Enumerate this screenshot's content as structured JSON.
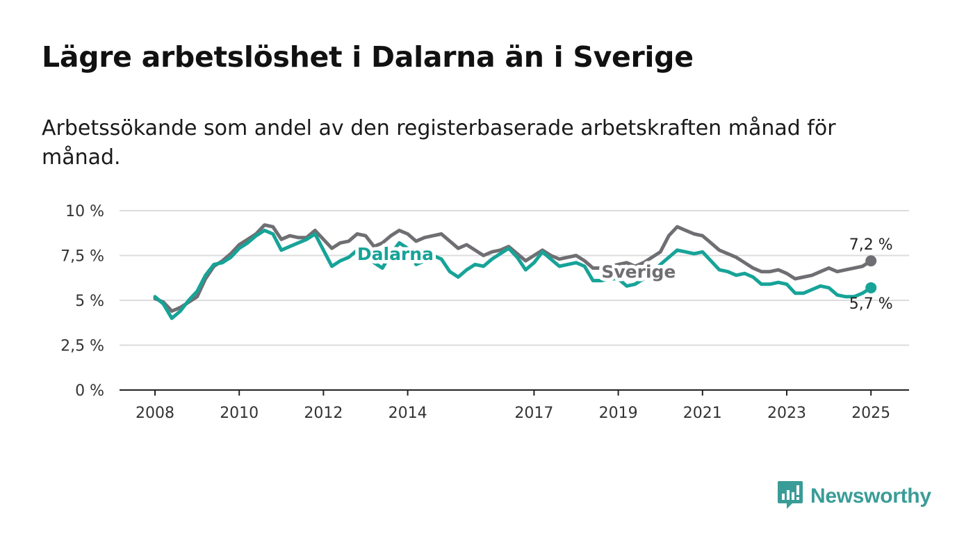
{
  "title": "Lägre arbetslöshet i Dalarna än i Sverige",
  "subtitle": "Arbetssökande som andel av den registerbaserade arbetskraften månad för månad.",
  "brand": {
    "name": "Newsworthy",
    "icon": "newsworthy-logo-icon",
    "color": "#3a9c97"
  },
  "chart_data": {
    "type": "line",
    "y_unit": "%",
    "ylim": [
      0,
      10
    ],
    "yticks": [
      0,
      2.5,
      5,
      7.5,
      10
    ],
    "ytick_labels": [
      "0 %",
      "2,5 %",
      "5 %",
      "7,5 %",
      "10 %"
    ],
    "xlim": [
      2007.9,
      2025.9
    ],
    "xticks": [
      2008,
      2010,
      2012,
      2014,
      2017,
      2019,
      2021,
      2023,
      2025
    ],
    "xtick_labels": [
      "2008",
      "2010",
      "2012",
      "2014",
      "2017",
      "2019",
      "2021",
      "2023",
      "2025"
    ],
    "grid": "horizontal",
    "legend": "inline labels",
    "series": [
      {
        "name": "Sverige",
        "color": "#6f6f73",
        "end_label": "7,2 %",
        "points": [
          [
            2008.0,
            5.1
          ],
          [
            2008.2,
            4.9
          ],
          [
            2008.4,
            4.4
          ],
          [
            2008.6,
            4.6
          ],
          [
            2008.8,
            4.9
          ],
          [
            2009.0,
            5.2
          ],
          [
            2009.2,
            6.2
          ],
          [
            2009.4,
            6.9
          ],
          [
            2009.6,
            7.2
          ],
          [
            2009.8,
            7.6
          ],
          [
            2010.0,
            8.1
          ],
          [
            2010.2,
            8.4
          ],
          [
            2010.4,
            8.7
          ],
          [
            2010.6,
            9.2
          ],
          [
            2010.8,
            9.1
          ],
          [
            2011.0,
            8.4
          ],
          [
            2011.2,
            8.6
          ],
          [
            2011.4,
            8.5
          ],
          [
            2011.6,
            8.5
          ],
          [
            2011.8,
            8.9
          ],
          [
            2012.0,
            8.4
          ],
          [
            2012.2,
            7.9
          ],
          [
            2012.4,
            8.2
          ],
          [
            2012.6,
            8.3
          ],
          [
            2012.8,
            8.7
          ],
          [
            2013.0,
            8.6
          ],
          [
            2013.2,
            8.0
          ],
          [
            2013.4,
            8.2
          ],
          [
            2013.6,
            8.6
          ],
          [
            2013.8,
            8.9
          ],
          [
            2014.0,
            8.7
          ],
          [
            2014.2,
            8.3
          ],
          [
            2014.4,
            8.5
          ],
          [
            2014.6,
            8.6
          ],
          [
            2014.8,
            8.7
          ],
          [
            2015.0,
            8.3
          ],
          [
            2015.2,
            7.9
          ],
          [
            2015.4,
            8.1
          ],
          [
            2015.6,
            7.8
          ],
          [
            2015.8,
            7.5
          ],
          [
            2016.0,
            7.7
          ],
          [
            2016.2,
            7.8
          ],
          [
            2016.4,
            8.0
          ],
          [
            2016.6,
            7.6
          ],
          [
            2016.8,
            7.2
          ],
          [
            2017.0,
            7.5
          ],
          [
            2017.2,
            7.8
          ],
          [
            2017.4,
            7.5
          ],
          [
            2017.6,
            7.3
          ],
          [
            2017.8,
            7.4
          ],
          [
            2018.0,
            7.5
          ],
          [
            2018.2,
            7.2
          ],
          [
            2018.4,
            6.8
          ],
          [
            2018.6,
            6.8
          ],
          [
            2018.8,
            6.9
          ],
          [
            2019.0,
            7.0
          ],
          [
            2019.2,
            7.1
          ],
          [
            2019.4,
            6.9
          ],
          [
            2019.6,
            7.1
          ],
          [
            2019.8,
            7.4
          ],
          [
            2020.0,
            7.7
          ],
          [
            2020.2,
            8.6
          ],
          [
            2020.4,
            9.1
          ],
          [
            2020.6,
            8.9
          ],
          [
            2020.8,
            8.7
          ],
          [
            2021.0,
            8.6
          ],
          [
            2021.2,
            8.2
          ],
          [
            2021.4,
            7.8
          ],
          [
            2021.6,
            7.6
          ],
          [
            2021.8,
            7.4
          ],
          [
            2022.0,
            7.1
          ],
          [
            2022.2,
            6.8
          ],
          [
            2022.4,
            6.6
          ],
          [
            2022.6,
            6.6
          ],
          [
            2022.8,
            6.7
          ],
          [
            2023.0,
            6.5
          ],
          [
            2023.2,
            6.2
          ],
          [
            2023.4,
            6.3
          ],
          [
            2023.6,
            6.4
          ],
          [
            2023.8,
            6.6
          ],
          [
            2024.0,
            6.8
          ],
          [
            2024.2,
            6.6
          ],
          [
            2024.4,
            6.7
          ],
          [
            2024.6,
            6.8
          ],
          [
            2024.8,
            6.9
          ],
          [
            2025.0,
            7.2
          ]
        ]
      },
      {
        "name": "Dalarna",
        "color": "#17a398",
        "end_label": "5,7 %",
        "points": [
          [
            2008.0,
            5.2
          ],
          [
            2008.2,
            4.8
          ],
          [
            2008.4,
            4.0
          ],
          [
            2008.6,
            4.4
          ],
          [
            2008.8,
            5.0
          ],
          [
            2009.0,
            5.5
          ],
          [
            2009.2,
            6.4
          ],
          [
            2009.4,
            7.0
          ],
          [
            2009.6,
            7.1
          ],
          [
            2009.8,
            7.4
          ],
          [
            2010.0,
            7.9
          ],
          [
            2010.2,
            8.2
          ],
          [
            2010.4,
            8.6
          ],
          [
            2010.6,
            8.9
          ],
          [
            2010.8,
            8.7
          ],
          [
            2011.0,
            7.8
          ],
          [
            2011.2,
            8.0
          ],
          [
            2011.4,
            8.2
          ],
          [
            2011.6,
            8.4
          ],
          [
            2011.8,
            8.7
          ],
          [
            2012.0,
            7.8
          ],
          [
            2012.2,
            6.9
          ],
          [
            2012.4,
            7.2
          ],
          [
            2012.6,
            7.4
          ],
          [
            2012.8,
            7.8
          ],
          [
            2013.0,
            8.0
          ],
          [
            2013.2,
            7.1
          ],
          [
            2013.4,
            6.8
          ],
          [
            2013.6,
            7.6
          ],
          [
            2013.8,
            8.2
          ],
          [
            2014.0,
            7.9
          ],
          [
            2014.2,
            7.0
          ],
          [
            2014.4,
            7.2
          ],
          [
            2014.6,
            7.5
          ],
          [
            2014.8,
            7.3
          ],
          [
            2015.0,
            6.6
          ],
          [
            2015.2,
            6.3
          ],
          [
            2015.4,
            6.7
          ],
          [
            2015.6,
            7.0
          ],
          [
            2015.8,
            6.9
          ],
          [
            2016.0,
            7.3
          ],
          [
            2016.2,
            7.6
          ],
          [
            2016.4,
            7.9
          ],
          [
            2016.6,
            7.4
          ],
          [
            2016.8,
            6.7
          ],
          [
            2017.0,
            7.1
          ],
          [
            2017.2,
            7.7
          ],
          [
            2017.4,
            7.3
          ],
          [
            2017.6,
            6.9
          ],
          [
            2017.8,
            7.0
          ],
          [
            2018.0,
            7.1
          ],
          [
            2018.2,
            6.9
          ],
          [
            2018.4,
            6.1
          ],
          [
            2018.6,
            6.1
          ],
          [
            2018.8,
            6.2
          ],
          [
            2019.0,
            6.2
          ],
          [
            2019.2,
            5.8
          ],
          [
            2019.4,
            5.9
          ],
          [
            2019.6,
            6.2
          ],
          [
            2019.8,
            6.5
          ],
          [
            2020.0,
            7.0
          ],
          [
            2020.2,
            7.4
          ],
          [
            2020.4,
            7.8
          ],
          [
            2020.6,
            7.7
          ],
          [
            2020.8,
            7.6
          ],
          [
            2021.0,
            7.7
          ],
          [
            2021.2,
            7.2
          ],
          [
            2021.4,
            6.7
          ],
          [
            2021.6,
            6.6
          ],
          [
            2021.8,
            6.4
          ],
          [
            2022.0,
            6.5
          ],
          [
            2022.2,
            6.3
          ],
          [
            2022.4,
            5.9
          ],
          [
            2022.6,
            5.9
          ],
          [
            2022.8,
            6.0
          ],
          [
            2023.0,
            5.9
          ],
          [
            2023.2,
            5.4
          ],
          [
            2023.4,
            5.4
          ],
          [
            2023.6,
            5.6
          ],
          [
            2023.8,
            5.8
          ],
          [
            2024.0,
            5.7
          ],
          [
            2024.2,
            5.3
          ],
          [
            2024.4,
            5.2
          ],
          [
            2024.6,
            5.2
          ],
          [
            2024.8,
            5.4
          ],
          [
            2025.0,
            5.7
          ]
        ]
      }
    ]
  }
}
